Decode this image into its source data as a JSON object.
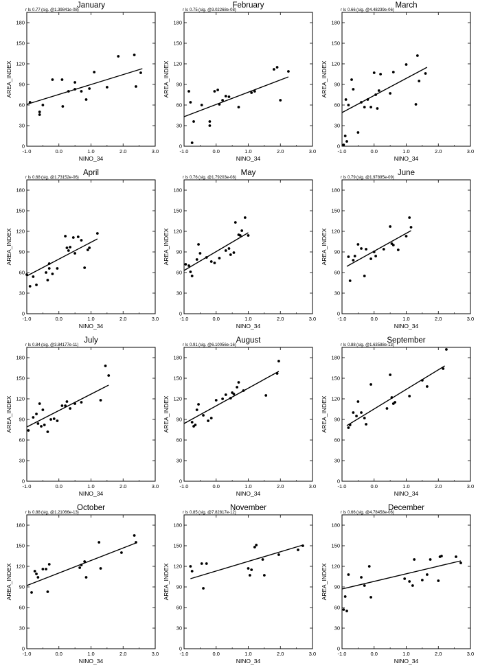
{
  "chart_data": [
    {
      "type": "scatter",
      "title": "January",
      "stat_label": "r ls",
      "r": "0.77",
      "sig": "(sig. @1.39841e-08)",
      "xlabel": "NINO_34",
      "ylabel": "AREA_INDEX",
      "xlim": [
        -1,
        3
      ],
      "ylim": [
        0,
        195
      ],
      "x": [
        -0.9,
        -0.6,
        -0.6,
        -0.5,
        -0.2,
        0.1,
        0.12,
        0.3,
        0.5,
        0.5,
        0.7,
        0.85,
        0.95,
        1.1,
        1.5,
        1.85,
        2.35,
        2.4,
        2.55
      ],
      "y": [
        64,
        50,
        46,
        60,
        97,
        97,
        58,
        80,
        83,
        93,
        80,
        68,
        84,
        108,
        86,
        131,
        133,
        87,
        107
      ],
      "fit": [
        [
          -1,
          61
        ],
        [
          2.6,
          113
        ]
      ]
    },
    {
      "type": "scatter",
      "title": "February",
      "stat_label": "r ls",
      "r": "0.75",
      "sig": "(sig. @3.02268e-08)",
      "xlabel": "NINO_34",
      "ylabel": "AREA_INDEX",
      "xlim": [
        -1,
        3
      ],
      "ylim": [
        0,
        195
      ],
      "x": [
        -0.85,
        -0.8,
        -0.75,
        -0.7,
        -0.45,
        -0.2,
        -0.2,
        -0.05,
        0.05,
        0.1,
        0.2,
        0.3,
        0.4,
        0.7,
        1.1,
        1.2,
        1.8,
        1.9,
        2.0,
        2.25
      ],
      "y": [
        80,
        64,
        5,
        36,
        60,
        36,
        30,
        80,
        82,
        61,
        67,
        73,
        72,
        57,
        78,
        80,
        112,
        115,
        67,
        109
      ],
      "fit": [
        [
          -1,
          43
        ],
        [
          2.25,
          101
        ]
      ]
    },
    {
      "type": "scatter",
      "title": "March",
      "stat_label": "r ls",
      "r": "0.66",
      "sig": "(sig. @4.48239e-06)",
      "xlabel": "NINO_34",
      "ylabel": "AREA_INDEX",
      "xlim": [
        -1,
        3
      ],
      "ylim": [
        0,
        195
      ],
      "x": [
        -0.95,
        -0.9,
        -0.88,
        -0.85,
        -0.8,
        -0.7,
        -0.65,
        -0.5,
        -0.4,
        -0.3,
        -0.2,
        -0.1,
        0.0,
        0.05,
        0.1,
        0.15,
        0.2,
        0.5,
        0.6,
        1.0,
        1.3,
        1.35,
        1.4,
        1.6
      ],
      "y": [
        2,
        15,
        68,
        7,
        60,
        97,
        83,
        20,
        64,
        57,
        68,
        57,
        107,
        75,
        55,
        81,
        105,
        77,
        108,
        119,
        61,
        132,
        95,
        106
      ],
      "fit": [
        [
          -1,
          49
        ],
        [
          1.65,
          115
        ]
      ]
    },
    {
      "type": "scatter",
      "title": "April",
      "stat_label": "r ls",
      "r": "0.68",
      "sig": "(sig. @1.73152e-06)",
      "xlabel": "NINO_34",
      "ylabel": "AREA_INDEX",
      "xlim": [
        -1,
        3
      ],
      "ylim": [
        0,
        195
      ],
      "x": [
        -1.0,
        -0.9,
        -0.8,
        -0.7,
        -0.4,
        -0.35,
        -0.3,
        -0.3,
        -0.2,
        -0.05,
        0.2,
        0.25,
        0.3,
        0.35,
        0.45,
        0.5,
        0.6,
        0.7,
        0.8,
        0.9,
        0.95,
        1.2
      ],
      "y": [
        57,
        40,
        54,
        42,
        60,
        49,
        73,
        66,
        58,
        66,
        113,
        96,
        92,
        97,
        111,
        88,
        112,
        107,
        67,
        93,
        96,
        117
      ],
      "fit": [
        [
          -1,
          55
        ],
        [
          1.2,
          109
        ]
      ]
    },
    {
      "type": "scatter",
      "title": "May",
      "stat_label": "r ls",
      "r": "0.76",
      "sig": "(sig. @1.79203e-08)",
      "xlabel": "NINO_34",
      "ylabel": "AREA_INDEX",
      "xlim": [
        -1,
        3
      ],
      "ylim": [
        0,
        195
      ],
      "x": [
        -0.95,
        -0.85,
        -0.8,
        -0.75,
        -0.6,
        -0.55,
        -0.5,
        -0.3,
        -0.15,
        -0.05,
        0.1,
        0.3,
        0.4,
        0.45,
        0.55,
        0.6,
        0.7,
        0.75,
        0.8,
        0.9,
        1.0
      ],
      "y": [
        72,
        70,
        61,
        55,
        79,
        101,
        88,
        82,
        76,
        74,
        81,
        92,
        95,
        86,
        89,
        133,
        115,
        114,
        121,
        140,
        114
      ],
      "fit": [
        [
          -1,
          63
        ],
        [
          1.0,
          118
        ]
      ]
    },
    {
      "type": "scatter",
      "title": "June",
      "stat_label": "r ls",
      "r": "0.79",
      "sig": "(sig. @1.97895e-09)",
      "xlabel": "NINO_34",
      "ylabel": "AREA_INDEX",
      "xlim": [
        -1,
        3
      ],
      "ylim": [
        0,
        195
      ],
      "x": [
        -0.8,
        -0.75,
        -0.65,
        -0.6,
        -0.5,
        -0.4,
        -0.3,
        -0.25,
        -0.1,
        0.0,
        0.05,
        0.3,
        0.5,
        0.55,
        0.6,
        0.75,
        1.0,
        1.1,
        1.15
      ],
      "y": [
        83,
        48,
        78,
        84,
        101,
        95,
        55,
        94,
        80,
        90,
        84,
        94,
        127,
        102,
        100,
        93,
        113,
        140,
        126
      ],
      "fit": [
        [
          -0.85,
          69
        ],
        [
          1.15,
          121
        ]
      ]
    },
    {
      "type": "scatter",
      "title": "July",
      "stat_label": "r ls",
      "r": "0.84",
      "sig": "(sig. @3.84177e-11)",
      "xlabel": "NINO_34",
      "ylabel": "AREA_INDEX",
      "xlim": [
        -1,
        3
      ],
      "ylim": [
        0,
        195
      ],
      "x": [
        -0.95,
        -0.8,
        -0.7,
        -0.65,
        -0.6,
        -0.55,
        -0.5,
        -0.45,
        -0.35,
        -0.25,
        -0.15,
        -0.05,
        0.1,
        0.2,
        0.25,
        0.35,
        0.5,
        0.7,
        1.3,
        1.45,
        1.55
      ],
      "y": [
        74,
        93,
        98,
        84,
        113,
        80,
        104,
        82,
        72,
        90,
        91,
        88,
        110,
        110,
        116,
        106,
        113,
        115,
        118,
        168,
        154
      ],
      "fit": [
        [
          -1,
          79
        ],
        [
          1.55,
          140
        ]
      ]
    },
    {
      "type": "scatter",
      "title": "August",
      "stat_label": "r ls",
      "r": "0.91",
      "sig": "(sig. @6.10056e-16)",
      "xlabel": "NINO_34",
      "ylabel": "AREA_INDEX",
      "xlim": [
        -1,
        3
      ],
      "ylim": [
        0,
        195
      ],
      "x": [
        -0.75,
        -0.7,
        -0.65,
        -0.6,
        -0.55,
        -0.4,
        -0.25,
        -0.15,
        0.0,
        0.2,
        0.3,
        0.45,
        0.5,
        0.55,
        0.65,
        0.7,
        0.85,
        1.55,
        1.9,
        1.95
      ],
      "y": [
        86,
        80,
        82,
        104,
        112,
        96,
        88,
        92,
        118,
        120,
        126,
        121,
        129,
        127,
        137,
        144,
        132,
        125,
        157,
        175
      ],
      "fit": [
        [
          -1,
          84
        ],
        [
          1.95,
          160
        ]
      ]
    },
    {
      "type": "scatter",
      "title": "September",
      "stat_label": "r ls",
      "r": "0.88",
      "sig": "(sig. @1.63588e-13)",
      "xlabel": "NINO_34",
      "ylabel": "AREA_INDEX",
      "xlim": [
        -1,
        3
      ],
      "ylim": [
        0,
        195
      ],
      "x": [
        -0.8,
        -0.75,
        -0.65,
        -0.55,
        -0.5,
        -0.4,
        -0.3,
        -0.25,
        -0.1,
        0.4,
        0.5,
        0.55,
        0.6,
        0.65,
        1.1,
        1.5,
        1.65,
        2.15,
        2.25
      ],
      "y": [
        78,
        82,
        100,
        95,
        116,
        100,
        92,
        83,
        141,
        106,
        155,
        122,
        113,
        115,
        124,
        147,
        138,
        164,
        192
      ],
      "fit": [
        [
          -0.85,
          81
        ],
        [
          2.2,
          168
        ]
      ]
    },
    {
      "type": "scatter",
      "title": "October",
      "stat_label": "r ls",
      "r": "0.88",
      "sig": "(sig. @1.21066e-13)",
      "xlabel": "NINO_34",
      "ylabel": "AREA_INDEX",
      "xlim": [
        -1,
        3
      ],
      "ylim": [
        0,
        195
      ],
      "x": [
        -0.85,
        -0.75,
        -0.7,
        -0.65,
        -0.5,
        -0.4,
        -0.35,
        -0.3,
        0.65,
        0.7,
        0.8,
        0.85,
        1.25,
        1.3,
        1.95,
        2.35,
        2.4
      ],
      "y": [
        82,
        113,
        109,
        104,
        116,
        116,
        83,
        123,
        118,
        122,
        127,
        104,
        155,
        117,
        140,
        165,
        155
      ],
      "fit": [
        [
          -1,
          92
        ],
        [
          2.4,
          154
        ]
      ]
    },
    {
      "type": "scatter",
      "title": "November",
      "stat_label": "r ls",
      "r": "0.85",
      "sig": "(sig. @7.82817e-12)",
      "xlabel": "NINO_34",
      "ylabel": "AREA_INDEX",
      "xlim": [
        -1,
        3
      ],
      "ylim": [
        0,
        195
      ],
      "x": [
        -0.8,
        -0.75,
        -0.45,
        -0.4,
        -0.3,
        1.0,
        1.05,
        1.1,
        1.2,
        1.25,
        1.45,
        1.5,
        1.95,
        2.55,
        2.7
      ],
      "y": [
        120,
        113,
        124,
        88,
        124,
        117,
        107,
        115,
        148,
        151,
        130,
        107,
        137,
        144,
        150
      ],
      "fit": [
        [
          -0.8,
          102
        ],
        [
          2.7,
          151
        ]
      ]
    },
    {
      "type": "scatter",
      "title": "December",
      "stat_label": "r ls",
      "r": "0.66",
      "sig": "(sig. @4.78458e-06)",
      "xlabel": "NINO_34",
      "ylabel": "AREA_INDEX",
      "xlim": [
        -1,
        3
      ],
      "ylim": [
        0,
        195
      ],
      "x": [
        -0.95,
        -0.9,
        -0.85,
        -0.8,
        -0.4,
        -0.3,
        -0.15,
        -0.1,
        0.95,
        1.1,
        1.2,
        1.25,
        1.5,
        1.65,
        1.75,
        2.0,
        2.05,
        2.1,
        2.55,
        2.7
      ],
      "y": [
        57,
        76,
        55,
        108,
        104,
        92,
        120,
        75,
        102,
        98,
        92,
        130,
        100,
        108,
        130,
        99,
        134,
        135,
        134,
        125
      ],
      "fit": [
        [
          -1,
          87
        ],
        [
          2.7,
          128
        ]
      ]
    }
  ],
  "axes": {
    "xticks": [
      -1,
      0,
      1,
      2,
      3
    ],
    "xtick_labels": [
      "-1.0",
      "0.0",
      "1.0",
      "2.0",
      "3.0"
    ],
    "yticks": [
      0,
      30,
      60,
      90,
      120,
      150,
      180
    ],
    "ytick_labels": [
      "0",
      "30",
      "60",
      "90",
      "120",
      "150",
      "180"
    ]
  }
}
